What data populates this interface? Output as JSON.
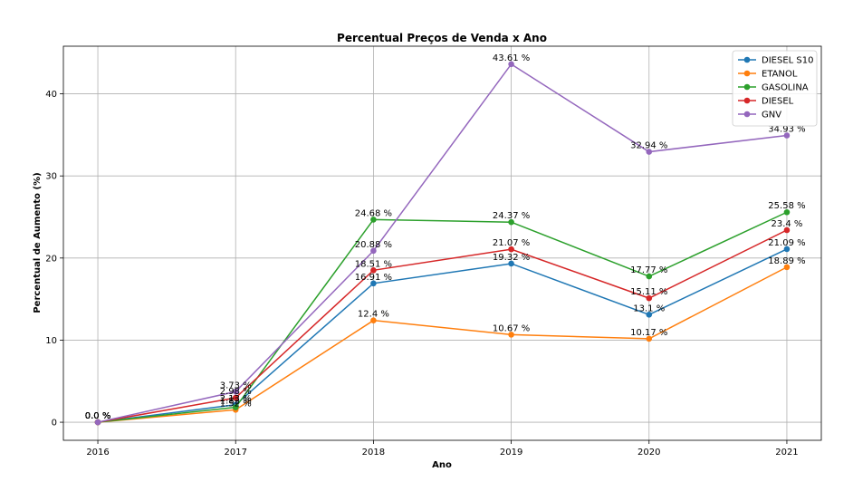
{
  "chart_data": {
    "type": "line",
    "title": "Percentual Preços de Venda x Ano",
    "xlabel": "Ano",
    "ylabel": "Percentual de Aumento (%)",
    "categories": [
      "2016",
      "2017",
      "2018",
      "2019",
      "2020",
      "2021"
    ],
    "x": [
      2016,
      2017,
      2018,
      2019,
      2020,
      2021
    ],
    "ylim": [
      -2.2,
      45.8
    ],
    "yticks": [
      0,
      10,
      20,
      30,
      40
    ],
    "grid": true,
    "legend_position": "top-right",
    "data_label_suffix": " %",
    "series": [
      {
        "name": "DIESEL S10",
        "color": "#1f77b4",
        "values": [
          0.0,
          2.13,
          16.91,
          19.32,
          13.1,
          21.09
        ]
      },
      {
        "name": "ETANOL",
        "color": "#ff7f0e",
        "values": [
          0.0,
          1.52,
          12.4,
          10.67,
          10.17,
          18.89
        ]
      },
      {
        "name": "GASOLINA",
        "color": "#2ca02c",
        "values": [
          0.0,
          1.82,
          24.68,
          24.37,
          17.77,
          25.58
        ]
      },
      {
        "name": "DIESEL",
        "color": "#d62728",
        "values": [
          0.0,
          2.98,
          18.51,
          21.07,
          15.11,
          23.4
        ]
      },
      {
        "name": "GNV",
        "color": "#9467bd",
        "values": [
          0.0,
          3.73,
          20.88,
          43.61,
          32.94,
          34.93
        ]
      }
    ]
  }
}
